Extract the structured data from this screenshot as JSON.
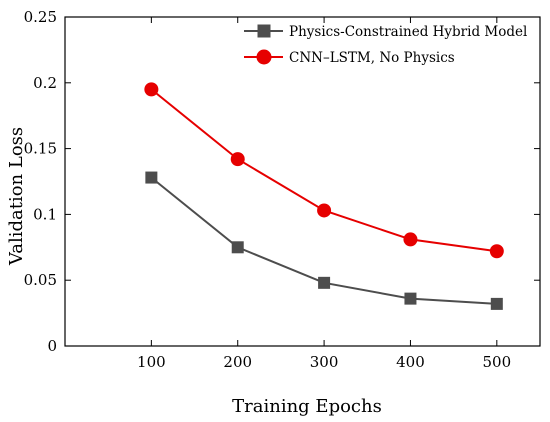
{
  "chart_data": {
    "type": "line",
    "xlabel": "Training Epochs",
    "ylabel": "Validation Loss",
    "x": [
      100,
      200,
      300,
      400,
      500
    ],
    "xlim": [
      0,
      550
    ],
    "ylim": [
      0,
      0.25
    ],
    "x_ticks": [
      100,
      200,
      300,
      400,
      500
    ],
    "x_tick_labels": [
      "100",
      "200",
      "300",
      "400",
      "500"
    ],
    "y_ticks": [
      0,
      0.05,
      0.1,
      0.15,
      0.2,
      0.25
    ],
    "y_tick_labels": [
      "0",
      "0.05",
      "0.1",
      "0.15",
      "0.2",
      "0.25"
    ],
    "grid": false,
    "legend_position": "top-right",
    "series": [
      {
        "name": "Physics-Constrained Hybrid Model",
        "values": [
          0.128,
          0.075,
          0.048,
          0.036,
          0.032
        ],
        "color": "#4d4d4d",
        "marker": "square"
      },
      {
        "name": "CNN–LSTM, No Physics",
        "values": [
          0.195,
          0.142,
          0.103,
          0.081,
          0.072
        ],
        "color": "#e60000",
        "marker": "circle"
      }
    ]
  }
}
